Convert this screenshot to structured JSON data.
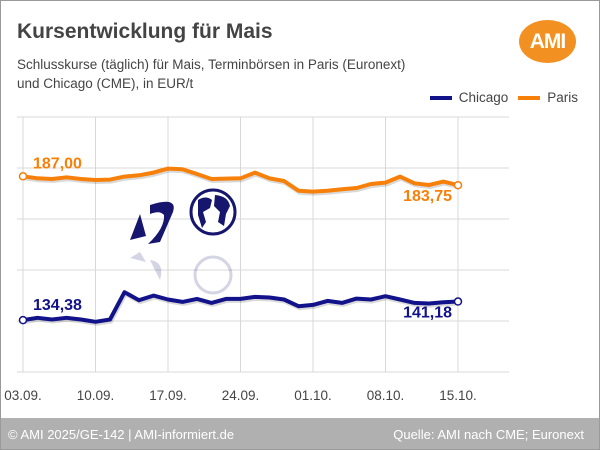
{
  "header": {
    "title": "Kursentwicklung für Mais",
    "subtitle_line1": "Schlusskurse (täglich) für Mais, Terminbörsen in Paris (Euronext)",
    "subtitle_line2": "und Chicago (CME), in EUR/t",
    "logo_text": "AMI"
  },
  "footer": {
    "left": "© AMI 2025/GE-142 | AMI-informiert.de",
    "right": "Quelle: AMI nach CME; Euronext"
  },
  "colors": {
    "chicago": "#12128a",
    "paris": "#f7800a",
    "grid": "#d8d8d8"
  },
  "chart_data": {
    "type": "line",
    "title": "Kursentwicklung für Mais",
    "xlabel": "",
    "ylabel": "EUR/t",
    "ylim": [
      115.4,
      208.7
    ],
    "grid": true,
    "legend_position": "top-right",
    "x_tick_labels": [
      "03.09.",
      "10.09.",
      "17.09.",
      "24.09.",
      "01.10.",
      "08.10.",
      "15.10."
    ],
    "x_tick_index": [
      0,
      5,
      10,
      15,
      20,
      25,
      30
    ],
    "series": [
      {
        "name": "Chicago",
        "color": "#12128a",
        "start_label": "134,38",
        "end_label": "141,18",
        "values": [
          134.38,
          135.23,
          134.62,
          135.23,
          134.62,
          133.77,
          134.62,
          144.58,
          141.66,
          143.36,
          141.91,
          141.06,
          142.15,
          140.69,
          142.15,
          142.15,
          142.88,
          142.64,
          141.91,
          139.48,
          139.96,
          141.42,
          140.69,
          142.27,
          141.91,
          143.12,
          141.91,
          140.69,
          140.45,
          140.94,
          141.18
        ]
      },
      {
        "name": "Paris",
        "color": "#f7800a",
        "start_label": "187,00",
        "end_label": "183,75",
        "values": [
          187.0,
          186.27,
          186.02,
          186.63,
          186.02,
          185.66,
          185.78,
          186.88,
          187.37,
          188.34,
          189.81,
          189.56,
          187.85,
          186.02,
          186.15,
          186.27,
          188.34,
          186.27,
          185.29,
          181.75,
          181.39,
          181.75,
          182.24,
          182.73,
          184.19,
          184.68,
          186.88,
          184.44,
          183.83,
          185.05,
          183.75
        ]
      }
    ]
  }
}
